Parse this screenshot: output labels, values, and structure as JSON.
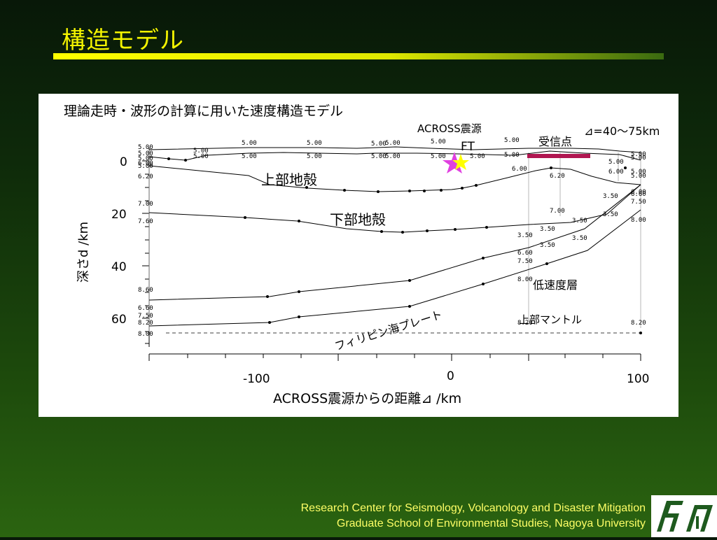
{
  "slide": {
    "title": "構造モデル",
    "footer_line1": "Research Center for Seismology, Volcanology and Disaster Mitigation",
    "footer_line2": "Graduate School of Environmental Studies, Nagoya University",
    "title_color": "#f4f400",
    "footer_color": "#ffff66"
  },
  "figure": {
    "heading": "理論走時・波形の計算に用いた速度構造モデル",
    "labels": {
      "source": "ACROSS震源",
      "source_code": "FT",
      "receivers": "受信点",
      "spacing": "⊿=40～75km",
      "upper_crust": "上部地殻",
      "lower_crust": "下部地殻",
      "lvl": "低速度層",
      "upper_mantle": "上部マントル",
      "plate": "フィリピン海プレート"
    },
    "y_axis_label": "深さd /km",
    "x_axis_label": "ACROSS震源からの距離⊿ /km",
    "y_ticks": [
      "0",
      "20",
      "40",
      "60"
    ],
    "x_ticks": [
      "-100",
      "0",
      "100"
    ],
    "velocity_labels": [
      "5.00",
      "5.00",
      "5.00",
      "6.00",
      "5.00",
      "6.20",
      "7.00",
      "7.60",
      "8.60",
      "6.60",
      "7.50",
      "8.20",
      "8.00",
      "5.00",
      "5.00",
      "5.00",
      "5.00",
      "5.00",
      "5.00",
      "5.00",
      "5.00",
      "5.00",
      "5.00",
      "5.00",
      "5.00",
      "5.00",
      "5.00",
      "5.00",
      "6.00",
      "6.20",
      "7.00",
      "3.50",
      "3.50",
      "3.50",
      "3.50",
      "3.50",
      "6.60",
      "7.50",
      "8.00",
      "8.20",
      "5.00",
      "6.00",
      "3.50",
      "3.50",
      "5.00",
      "5.00",
      "5.00",
      "5.00",
      "6.00",
      "6.60",
      "7.50",
      "8.00",
      "8.20"
    ],
    "colors": {
      "receiver_bar": "#b01650",
      "star_magenta": "#e040e0",
      "star_yellow": "#ffff00"
    }
  }
}
